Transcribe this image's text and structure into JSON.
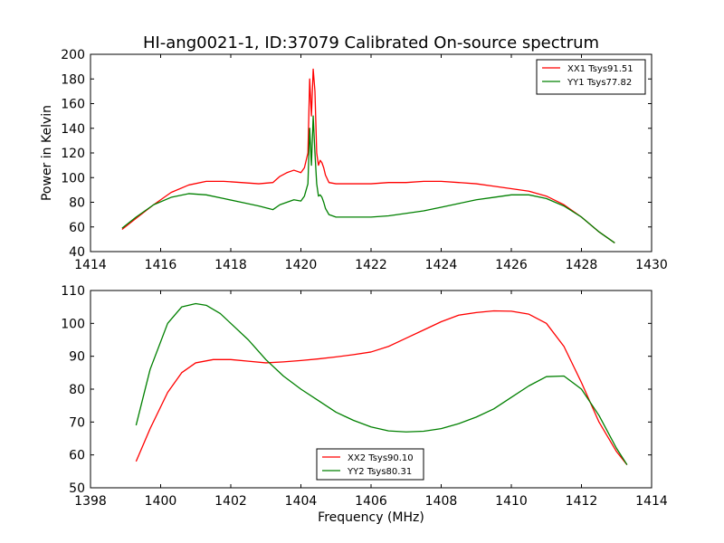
{
  "page": {
    "title": "HI-ang0021-1, ID:37079 Calibrated On-source spectrum"
  },
  "chart_data": [
    {
      "type": "line",
      "ylabel": "Power in Kelvin",
      "xlabel": "",
      "xlim": [
        1414,
        1430
      ],
      "ylim": [
        40,
        200
      ],
      "xticks": [
        1414,
        1416,
        1418,
        1420,
        1422,
        1424,
        1426,
        1428,
        1430
      ],
      "yticks": [
        40,
        60,
        80,
        100,
        120,
        140,
        160,
        180,
        200
      ],
      "grid": false,
      "legend_position": "upper-right",
      "series": [
        {
          "name": "XX1 Tsys91.51",
          "color": "#ff0000",
          "x": [
            1414.9,
            1415.3,
            1415.8,
            1416.3,
            1416.8,
            1417.3,
            1417.8,
            1418.3,
            1418.8,
            1419.2,
            1419.4,
            1419.6,
            1419.8,
            1420.0,
            1420.1,
            1420.2,
            1420.25,
            1420.3,
            1420.35,
            1420.4,
            1420.45,
            1420.5,
            1420.55,
            1420.6,
            1420.65,
            1420.7,
            1420.8,
            1421.0,
            1421.5,
            1422.0,
            1422.5,
            1423.0,
            1423.5,
            1424.0,
            1424.5,
            1425.0,
            1425.5,
            1426.0,
            1426.5,
            1427.0,
            1427.5,
            1428.0,
            1428.5,
            1428.95
          ],
          "y": [
            58,
            67,
            78,
            88,
            94,
            97,
            97,
            96,
            95,
            96,
            101,
            104,
            106,
            104,
            108,
            120,
            180,
            150,
            188,
            170,
            120,
            110,
            114,
            112,
            108,
            102,
            96,
            95,
            95,
            95,
            96,
            96,
            97,
            97,
            96,
            95,
            93,
            91,
            89,
            85,
            78,
            68,
            56,
            47
          ]
        },
        {
          "name": "YY1 Tsys77.82",
          "color": "#008000",
          "x": [
            1414.9,
            1415.3,
            1415.8,
            1416.3,
            1416.8,
            1417.3,
            1417.8,
            1418.3,
            1418.8,
            1419.2,
            1419.4,
            1419.6,
            1419.8,
            1420.0,
            1420.1,
            1420.2,
            1420.25,
            1420.3,
            1420.35,
            1420.4,
            1420.45,
            1420.5,
            1420.55,
            1420.6,
            1420.65,
            1420.7,
            1420.8,
            1421.0,
            1421.5,
            1422.0,
            1422.5,
            1423.0,
            1423.5,
            1424.0,
            1424.5,
            1425.0,
            1425.5,
            1426.0,
            1426.5,
            1427.0,
            1427.5,
            1428.0,
            1428.5,
            1428.95
          ],
          "y": [
            59,
            68,
            78,
            84,
            87,
            86,
            83,
            80,
            77,
            74,
            78,
            80,
            82,
            81,
            85,
            95,
            140,
            110,
            150,
            120,
            95,
            85,
            86,
            84,
            80,
            75,
            70,
            68,
            68,
            68,
            69,
            71,
            73,
            76,
            79,
            82,
            84,
            86,
            86,
            83,
            77,
            68,
            56,
            47
          ]
        }
      ]
    },
    {
      "type": "line",
      "ylabel": "",
      "xlabel": "Frequency (MHz)",
      "xlim": [
        1398,
        1414
      ],
      "ylim": [
        50,
        110
      ],
      "xticks": [
        1398,
        1400,
        1402,
        1404,
        1406,
        1408,
        1410,
        1412,
        1414
      ],
      "yticks": [
        50,
        60,
        70,
        80,
        90,
        100,
        110
      ],
      "grid": false,
      "legend_position": "lower-center",
      "series": [
        {
          "name": "XX2 Tsys90.10",
          "color": "#ff0000",
          "x": [
            1399.3,
            1399.7,
            1400.2,
            1400.6,
            1401.0,
            1401.5,
            1402.0,
            1402.5,
            1403.0,
            1403.5,
            1404.0,
            1404.5,
            1405.0,
            1405.5,
            1406.0,
            1406.5,
            1407.0,
            1407.5,
            1408.0,
            1408.5,
            1409.0,
            1409.5,
            1410.0,
            1410.5,
            1411.0,
            1411.5,
            1412.0,
            1412.5,
            1413.0,
            1413.3
          ],
          "y": [
            58,
            68,
            79,
            85,
            88,
            89,
            89,
            88.5,
            88,
            88.3,
            88.7,
            89.2,
            89.8,
            90.5,
            91.3,
            93,
            95.5,
            98,
            100.5,
            102.5,
            103.3,
            103.8,
            103.7,
            102.8,
            100,
            93,
            82,
            70,
            61,
            57
          ]
        },
        {
          "name": "YY2 Tsys80.31",
          "color": "#008000",
          "x": [
            1399.3,
            1399.7,
            1400.2,
            1400.6,
            1401.0,
            1401.3,
            1401.7,
            1402.0,
            1402.5,
            1403.0,
            1403.5,
            1404.0,
            1404.5,
            1405.0,
            1405.5,
            1406.0,
            1406.5,
            1407.0,
            1407.5,
            1408.0,
            1408.5,
            1409.0,
            1409.5,
            1410.0,
            1410.5,
            1411.0,
            1411.5,
            1412.0,
            1412.5,
            1413.0,
            1413.3
          ],
          "y": [
            69,
            86,
            100,
            105,
            106,
            105.5,
            103,
            100,
            95,
            89,
            84,
            80,
            76.5,
            73,
            70.5,
            68.5,
            67.3,
            67,
            67.2,
            68,
            69.5,
            71.5,
            74,
            77.5,
            81,
            83.8,
            84,
            80,
            72,
            62,
            57
          ]
        }
      ]
    }
  ]
}
